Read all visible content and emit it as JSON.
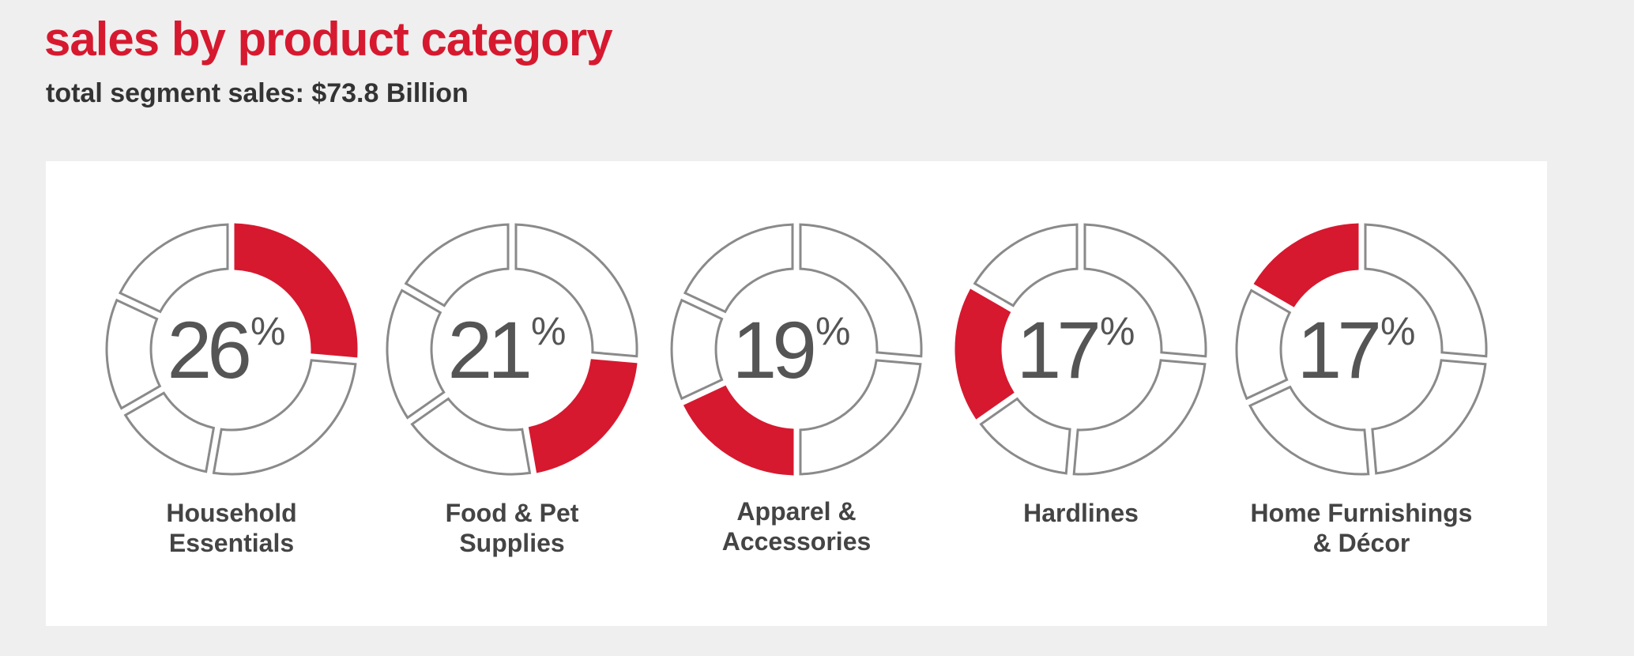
{
  "title": "sales by product category",
  "subtitle": "total segment sales: $73.8 Billion",
  "colors": {
    "accent": "#d6192f",
    "outline": "#8a8a8a",
    "text": "#555555"
  },
  "chart_data": {
    "type": "pie",
    "title": "sales by product category",
    "subtitle": "total segment sales: $73.8 Billion",
    "unit": "%",
    "categories": [
      "Household\nEssentials",
      "Food & Pet\nSupplies",
      "Apparel &\nAccessories",
      "Hardlines",
      "Home Furnishings\n& Décor"
    ],
    "values": [
      26,
      21,
      19,
      17,
      17
    ],
    "value_labels": [
      "26",
      "21",
      "19",
      "17",
      "17"
    ],
    "percent_sign": "%"
  }
}
